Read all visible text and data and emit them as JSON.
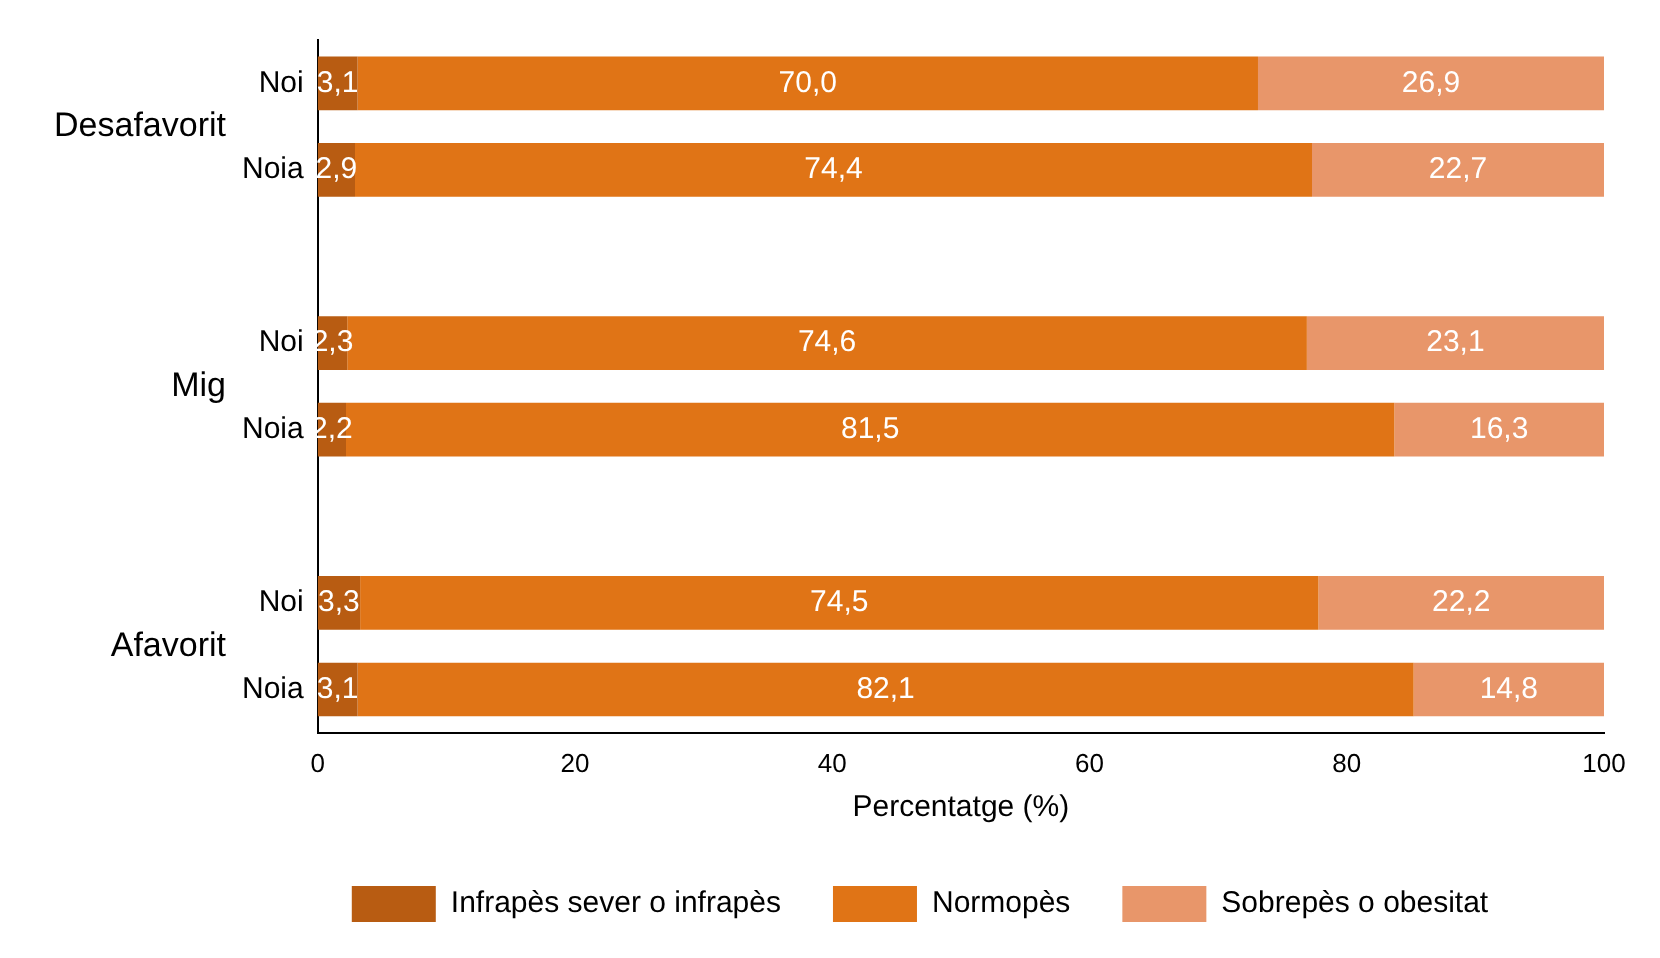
{
  "chart_data": {
    "type": "bar",
    "orientation": "horizontal",
    "stacked": true,
    "categories": [
      "Noi",
      "Noia",
      null,
      "Noi",
      "Noia",
      null,
      "Noi",
      "Noia"
    ],
    "annotations": [
      {
        "text": "Desafavorit"
      },
      {
        "text": "Mig"
      },
      {
        "text": "Afavorit"
      }
    ],
    "series": [
      {
        "name": "Infrapès sever o infrapès",
        "color": "#b85c12",
        "values": [
          3.1,
          2.9,
          null,
          2.3,
          2.2,
          null,
          3.3,
          3.1
        ],
        "value_labels": [
          "3,1",
          "2,9",
          null,
          "2,3",
          "2,2",
          null,
          "3,3",
          "3,1"
        ]
      },
      {
        "name": "Normopès",
        "color": "#e07416",
        "values": [
          70.0,
          74.4,
          null,
          74.6,
          81.5,
          null,
          74.5,
          82.1
        ],
        "value_labels": [
          "70,0",
          "74,4",
          null,
          "74,6",
          "81,5",
          null,
          "74,5",
          "82,1"
        ]
      },
      {
        "name": "Sobrepès o obesitat",
        "color": "#e8966a",
        "values": [
          26.9,
          22.7,
          null,
          23.1,
          16.3,
          null,
          22.2,
          14.8
        ],
        "value_labels": [
          "26,9",
          "22,7",
          null,
          "23,1",
          "16,3",
          null,
          "22,2",
          "14,8"
        ]
      }
    ],
    "xlabel": "Percentatge (%)",
    "xlim": [
      0,
      100
    ],
    "xticks": [
      0,
      20,
      40,
      60,
      80,
      100
    ],
    "grid": false,
    "legend": "bottom"
  }
}
